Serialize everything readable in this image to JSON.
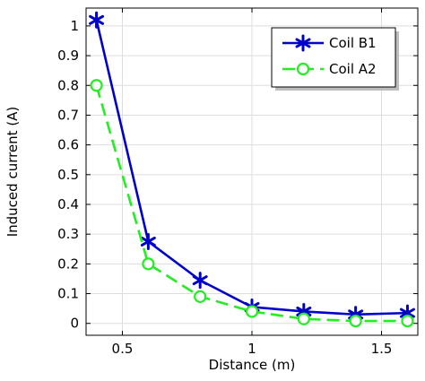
{
  "chart_data": {
    "type": "line",
    "xlabel": "Distance (m)",
    "ylabel": "Induced current (A)",
    "xlim": [
      0.36,
      1.64
    ],
    "ylim": [
      -0.04,
      1.06
    ],
    "grid": true,
    "legend_position": "top-right",
    "x_ticks": [
      0.5,
      1,
      1.5
    ],
    "x_tick_labels": [
      "0.5",
      "1",
      "1.5"
    ],
    "y_ticks": [
      0,
      0.1,
      0.2,
      0.3,
      0.4,
      0.5,
      0.6,
      0.7,
      0.8,
      0.9,
      1
    ],
    "y_tick_labels": [
      "0",
      "0.1",
      "0.2",
      "0.3",
      "0.4",
      "0.5",
      "0.6",
      "0.7",
      "0.8",
      "0.9",
      "1"
    ],
    "x": [
      0.4,
      0.6,
      0.8,
      1.0,
      1.2,
      1.4,
      1.6
    ],
    "series": [
      {
        "name": "Coil B1",
        "values": [
          1.02,
          0.275,
          0.145,
          0.055,
          0.04,
          0.03,
          0.035
        ],
        "color": "#0000cc",
        "line_style": "solid",
        "marker": "asterisk"
      },
      {
        "name": "Coil A2",
        "values": [
          0.8,
          0.2,
          0.09,
          0.04,
          0.015,
          0.008,
          0.008
        ],
        "color": "#22ee22",
        "line_style": "dashed",
        "marker": "circle"
      }
    ]
  }
}
